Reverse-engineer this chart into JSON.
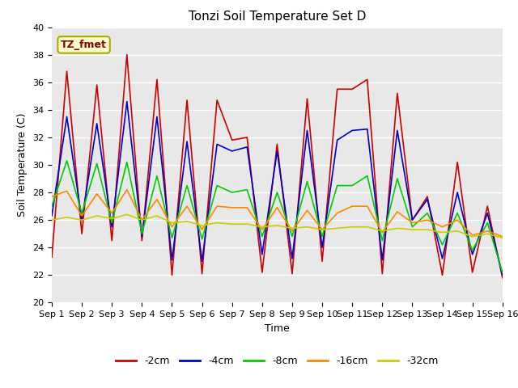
{
  "title": "Tonzi Soil Temperature Set D",
  "xlabel": "Time",
  "ylabel": "Soil Temperature (C)",
  "ylim": [
    20,
    40
  ],
  "xlim": [
    0,
    30
  ],
  "annotation": "TZ_fmet",
  "xtick_labels": [
    "Sep 1",
    "Sep 2",
    "Sep 3",
    "Sep 4",
    "Sep 5",
    "Sep 6",
    "Sep 7",
    "Sep 8",
    "Sep 9",
    "Sep 10",
    "Sep 11",
    "Sep 12",
    "Sep 13",
    "Sep 14",
    "Sep 15",
    "Sep 16"
  ],
  "xtick_positions": [
    0,
    2,
    4,
    6,
    8,
    10,
    12,
    14,
    16,
    18,
    20,
    22,
    24,
    26,
    28,
    30
  ],
  "series": {
    "-2cm": {
      "color": "#cc0000",
      "values": [
        23.3,
        36.8,
        25.0,
        35.8,
        24.5,
        38.0,
        24.5,
        36.2,
        22.0,
        34.7,
        22.1,
        34.7,
        31.8,
        32.0,
        22.2,
        31.5,
        22.1,
        34.8,
        23.0,
        35.5,
        35.5,
        36.2,
        22.1,
        35.2,
        26.0,
        27.7,
        22.0,
        30.2,
        22.2,
        27.0,
        21.8
      ]
    },
    "-4cm": {
      "color": "#0000cc",
      "values": [
        26.3,
        33.5,
        26.0,
        33.0,
        25.5,
        34.6,
        24.8,
        33.5,
        23.1,
        31.7,
        23.0,
        31.5,
        31.0,
        31.3,
        23.5,
        31.0,
        23.2,
        32.5,
        24.0,
        31.8,
        32.5,
        32.6,
        23.1,
        32.5,
        26.0,
        27.5,
        23.2,
        28.0,
        23.5,
        26.5,
        22.0
      ]
    },
    "-8cm": {
      "color": "#00cc00",
      "values": [
        27.0,
        30.3,
        26.5,
        30.1,
        25.8,
        30.2,
        25.0,
        29.2,
        24.7,
        28.5,
        24.6,
        28.5,
        28.0,
        28.2,
        24.8,
        28.0,
        24.8,
        28.8,
        24.8,
        28.5,
        28.5,
        29.2,
        24.5,
        29.0,
        25.5,
        26.5,
        24.2,
        26.5,
        23.8,
        25.8,
        22.2
      ]
    },
    "-16cm": {
      "color": "#ff8800",
      "values": [
        27.7,
        28.1,
        26.3,
        27.9,
        26.5,
        28.2,
        26.0,
        27.5,
        25.5,
        27.0,
        25.3,
        27.0,
        26.9,
        26.9,
        25.3,
        26.9,
        25.2,
        26.7,
        25.3,
        26.5,
        27.0,
        27.0,
        25.1,
        26.6,
        25.8,
        26.0,
        25.5,
        26.0,
        24.9,
        25.2,
        24.8
      ]
    },
    "-32cm": {
      "color": "#cccc00",
      "values": [
        26.0,
        26.2,
        26.0,
        26.3,
        26.1,
        26.4,
        26.0,
        26.3,
        25.8,
        25.9,
        25.6,
        25.8,
        25.7,
        25.7,
        25.5,
        25.6,
        25.4,
        25.5,
        25.3,
        25.4,
        25.5,
        25.5,
        25.2,
        25.4,
        25.3,
        25.3,
        25.1,
        25.2,
        24.8,
        25.0,
        24.7
      ]
    }
  },
  "legend_order": [
    "-2cm",
    "-4cm",
    "-8cm",
    "-16cm",
    "-32cm"
  ],
  "bg_color": "#e8e8e8",
  "fig_bg_color": "#ffffff",
  "grid_color": "#ffffff",
  "title_fontsize": 11,
  "axis_fontsize": 9,
  "tick_fontsize": 8,
  "legend_fontsize": 9
}
